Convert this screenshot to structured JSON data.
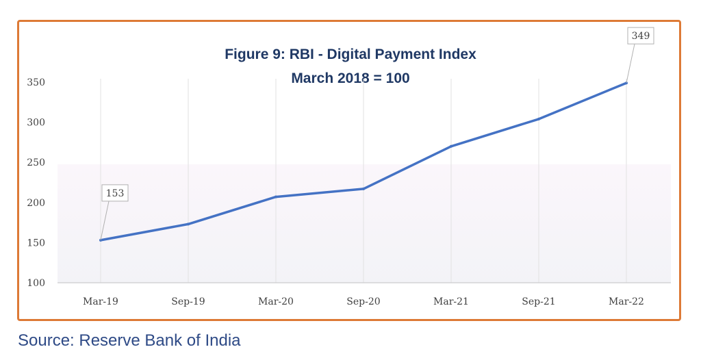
{
  "chart_data": {
    "type": "line",
    "title": "Figure 9: RBI - Digital Payment Index",
    "subtitle": "March 2018 = 100",
    "categories": [
      "Mar-19",
      "Sep-19",
      "Mar-20",
      "Sep-20",
      "Mar-21",
      "Sep-21",
      "Mar-22"
    ],
    "series": [
      {
        "values": [
          153,
          173,
          207,
          217,
          270,
          304,
          349
        ]
      }
    ],
    "data_labels": [
      {
        "category": "Mar-19",
        "text": "153"
      },
      {
        "category": "Mar-22",
        "text": "349"
      }
    ],
    "yticks": [
      "100",
      "150",
      "200",
      "250",
      "300",
      "350"
    ],
    "ylim": [
      100,
      350
    ],
    "grid": "vertical",
    "line_color": "#4472c4",
    "frame_color": "#dd7a36",
    "title_color": "#1f3864"
  },
  "source": "Source: Reserve Bank of India"
}
